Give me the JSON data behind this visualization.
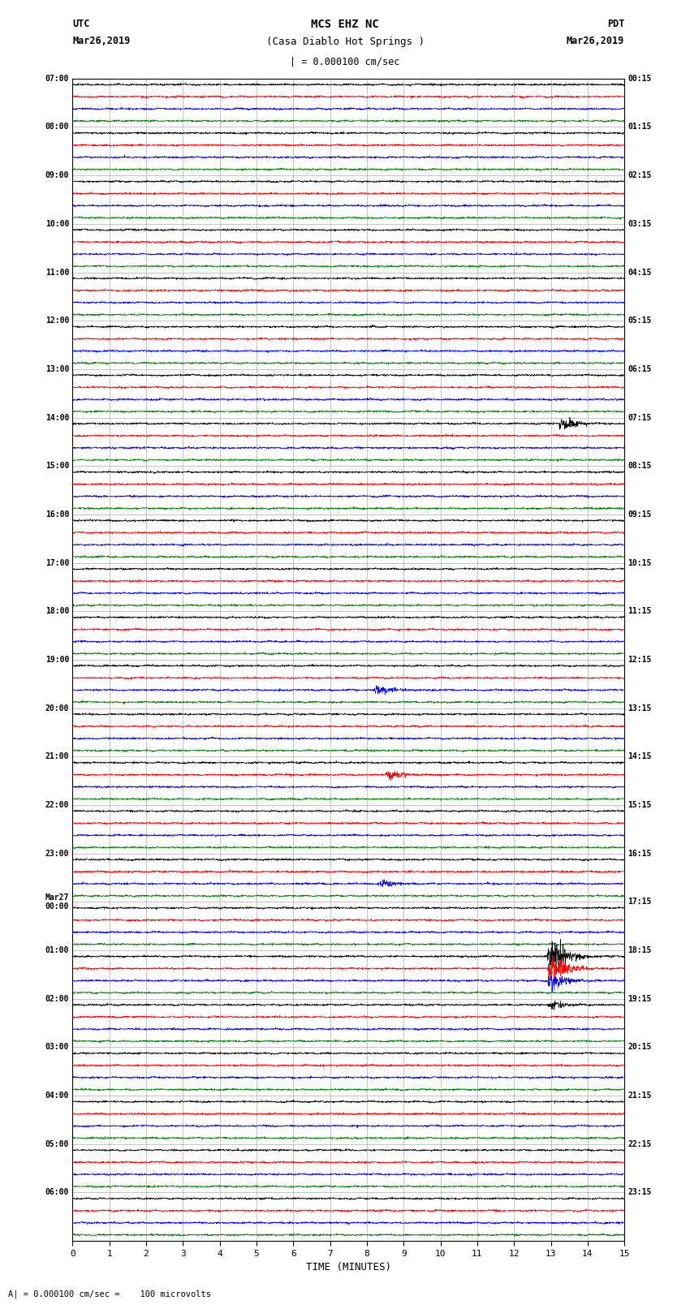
{
  "title_line1": "MCS EHZ NC",
  "title_line2": "(Casa Diablo Hot Springs )",
  "scale_label": "| = 0.000100 cm/sec",
  "footer_label": "A| = 0.000100 cm/sec =    100 microvolts",
  "xlabel": "TIME (MINUTES)",
  "left_header": "UTC",
  "left_date": "Mar26,2019",
  "right_header": "PDT",
  "right_date": "Mar26,2019",
  "left_times_hourly": [
    "07:00",
    "08:00",
    "09:00",
    "10:00",
    "11:00",
    "12:00",
    "13:00",
    "14:00",
    "15:00",
    "16:00",
    "17:00",
    "18:00",
    "19:00",
    "20:00",
    "21:00",
    "22:00",
    "23:00",
    "Mar27\n00:00",
    "01:00",
    "02:00",
    "03:00",
    "04:00",
    "05:00",
    "06:00"
  ],
  "right_times_hourly": [
    "00:15",
    "01:15",
    "02:15",
    "03:15",
    "04:15",
    "05:15",
    "06:15",
    "07:15",
    "08:15",
    "09:15",
    "10:15",
    "11:15",
    "12:15",
    "13:15",
    "14:15",
    "15:15",
    "16:15",
    "17:15",
    "18:15",
    "19:15",
    "20:15",
    "21:15",
    "22:15",
    "23:15"
  ],
  "trace_colors": [
    "black",
    "red",
    "blue",
    "green"
  ],
  "num_hour_groups": 24,
  "traces_per_group": 4,
  "x_ticks": [
    0,
    1,
    2,
    3,
    4,
    5,
    6,
    7,
    8,
    9,
    10,
    11,
    12,
    13,
    14,
    15
  ],
  "xlim": [
    0,
    15
  ],
  "noise_amplitude": 0.035,
  "background_color": "white",
  "grid_color": "#999999",
  "fig_width": 8.5,
  "fig_height": 16.13,
  "special_events": [
    {
      "group": 7,
      "trace": 0,
      "time": 13.2,
      "amp": 0.4
    },
    {
      "group": 14,
      "trace": 1,
      "time": 8.5,
      "amp": 0.3
    },
    {
      "group": 12,
      "trace": 2,
      "time": 8.2,
      "amp": 0.35
    },
    {
      "group": 16,
      "trace": 2,
      "time": 8.3,
      "amp": 0.25
    },
    {
      "group": 18,
      "trace": 0,
      "time": 12.9,
      "amp": 1.2
    },
    {
      "group": 18,
      "trace": 1,
      "time": 12.9,
      "amp": 0.8
    },
    {
      "group": 18,
      "trace": 2,
      "time": 12.9,
      "amp": 0.6
    },
    {
      "group": 19,
      "trace": 0,
      "time": 12.9,
      "amp": 0.3
    }
  ]
}
